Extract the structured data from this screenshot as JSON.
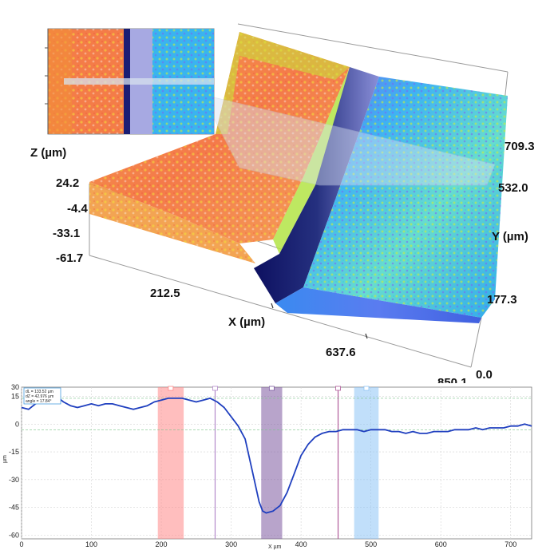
{
  "surface_view": {
    "axes": {
      "z_label": "Z (µm)",
      "x_label": "X (µm)",
      "y_label": "Y (µm)"
    },
    "z_ticks": [
      "24.2",
      "-4.4",
      "-33.1",
      "-61.7"
    ],
    "x_ticks": [
      "212.5",
      "637.6",
      "850.1"
    ],
    "y_ticks": [
      "709.3",
      "532.0",
      "177.3",
      "0.0"
    ],
    "colors": {
      "high": "#f4774a",
      "mid": "#e8e43a",
      "low": "#3fa9f5",
      "deep": "#1b1f7a",
      "frame": "#999999"
    }
  },
  "chart_data": {
    "type": "line",
    "xlabel": "X µm",
    "ylabel": "µm",
    "xlim": [
      0,
      730
    ],
    "ylim": [
      -62,
      20
    ],
    "xticks": [
      0,
      100,
      200,
      300,
      400,
      500,
      600,
      700
    ],
    "yticks": [
      30,
      15,
      0,
      -15,
      -30,
      -45,
      -60
    ],
    "grid": true,
    "legend_placement": "top-left",
    "legend_lines": [
      "dL = 133.52 µm",
      "dZ = 42.976 µm",
      "angle = 17.84°"
    ],
    "series": [
      {
        "color": "#1f3fbf",
        "x": [
          0,
          10,
          20,
          30,
          40,
          50,
          60,
          70,
          80,
          90,
          100,
          110,
          120,
          130,
          140,
          150,
          160,
          170,
          180,
          190,
          200,
          210,
          220,
          230,
          240,
          250,
          260,
          270,
          280,
          290,
          300,
          310,
          320,
          330,
          340,
          345,
          350,
          360,
          370,
          380,
          390,
          400,
          410,
          420,
          430,
          440,
          450,
          460,
          470,
          480,
          490,
          500,
          510,
          520,
          530,
          540,
          550,
          560,
          570,
          580,
          590,
          600,
          610,
          620,
          630,
          640,
          650,
          660,
          670,
          680,
          690,
          700,
          710,
          720,
          730
        ],
        "y": [
          9,
          8,
          11,
          13,
          15,
          15,
          12,
          10,
          9,
          10,
          11,
          10,
          11,
          11,
          10,
          9,
          8,
          9,
          10,
          12,
          13,
          14,
          14,
          14,
          13,
          12,
          13,
          14,
          12,
          9,
          4,
          -1,
          -8,
          -25,
          -42,
          -47,
          -48,
          -47,
          -44,
          -37,
          -27,
          -17,
          -11,
          -7,
          -5,
          -4,
          -4,
          -3,
          -3,
          -3,
          -4,
          -3,
          -3,
          -3,
          -4,
          -4,
          -5,
          -4,
          -5,
          -5,
          -4,
          -4,
          -4,
          -3,
          -3,
          -3,
          -2,
          -3,
          -2,
          -2,
          -2,
          -1,
          -1,
          0,
          -1
        ]
      }
    ],
    "regions": [
      {
        "x0": 195,
        "x1": 232,
        "color": "#ff8888"
      },
      {
        "x0": 343,
        "x1": 373,
        "color": "#7d5aa0"
      },
      {
        "x0": 476,
        "x1": 511,
        "color": "#8ec4f5"
      }
    ],
    "markers": [
      {
        "x": 277,
        "color": "#b48acb"
      },
      {
        "x": 453,
        "color": "#b05a9a"
      }
    ],
    "reference_lines": [
      14,
      -3
    ]
  }
}
